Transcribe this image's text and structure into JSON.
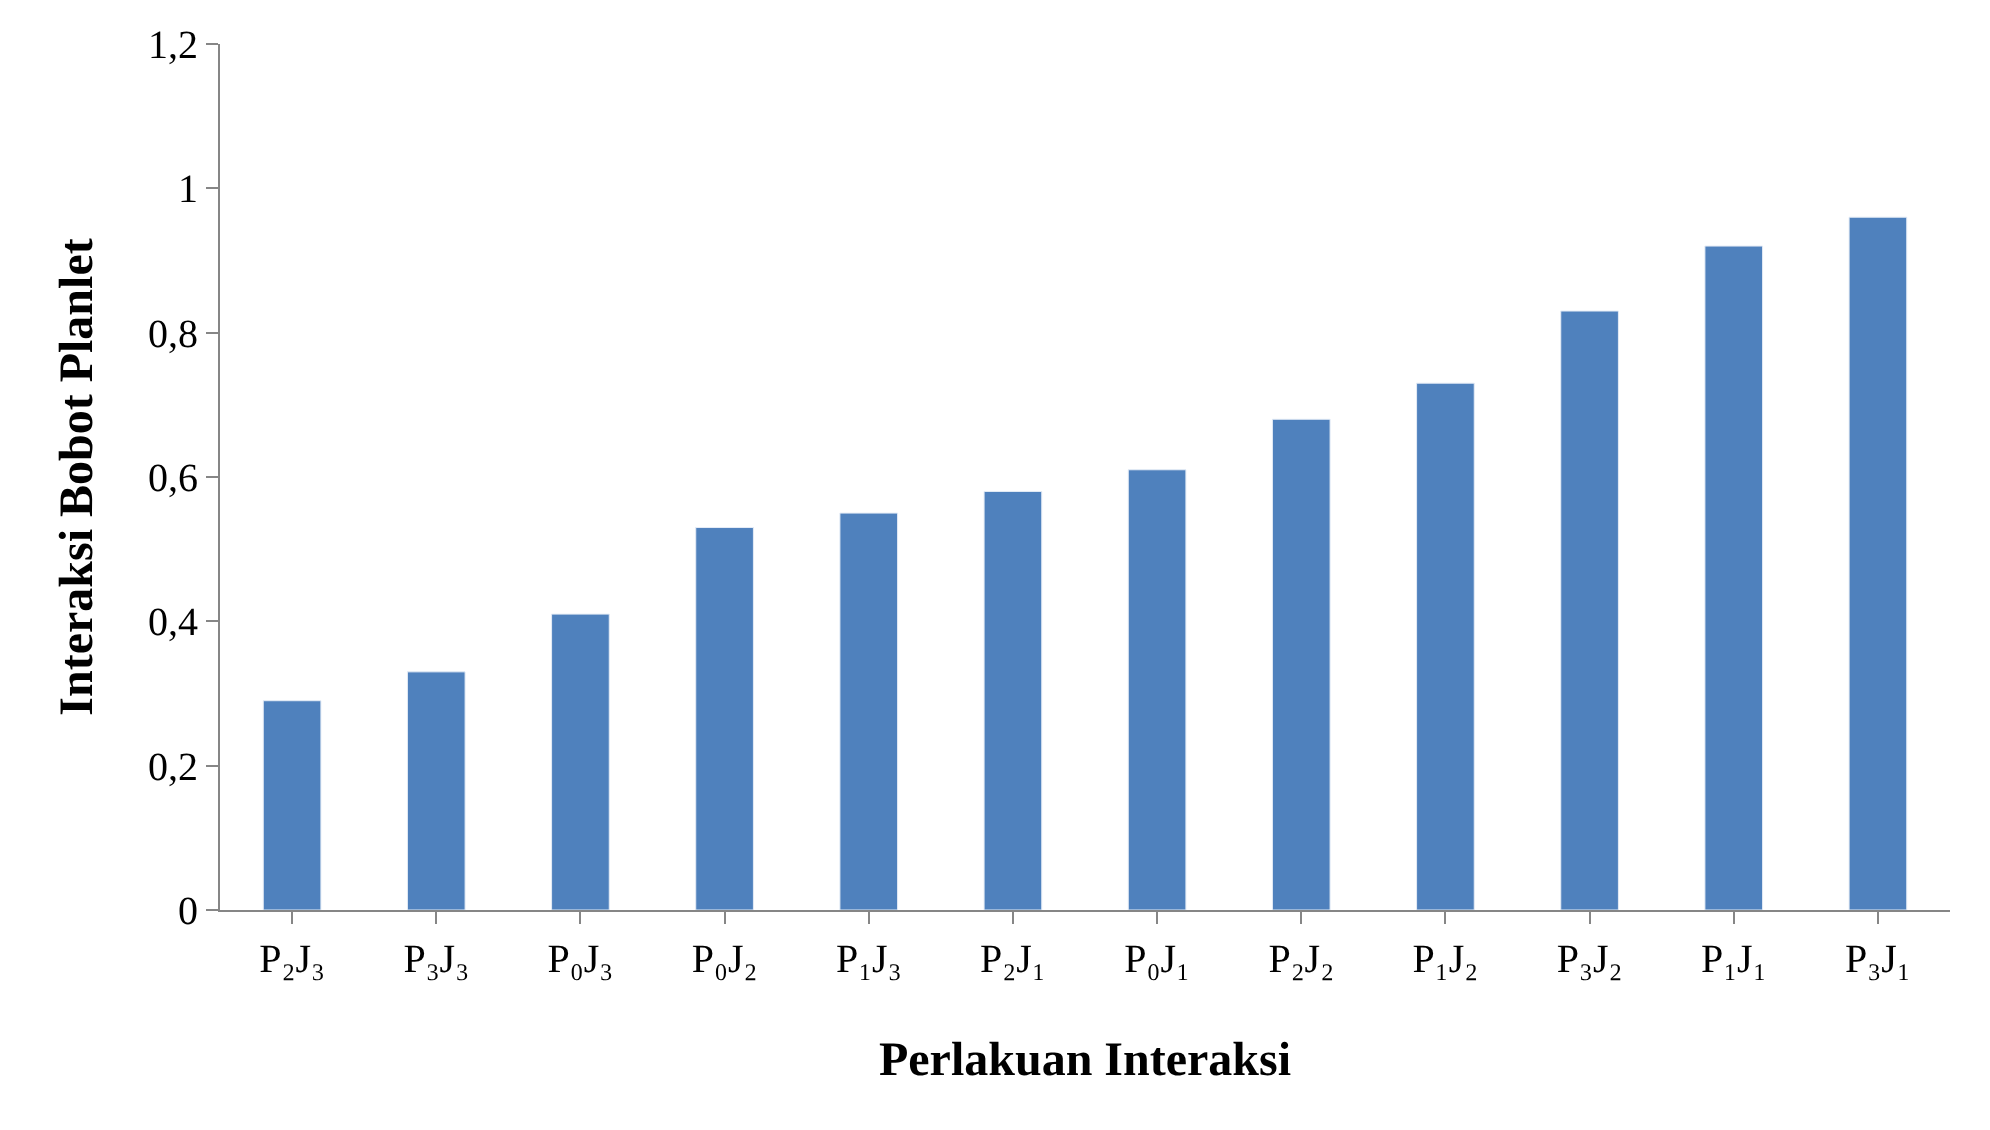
{
  "chart_data": {
    "type": "bar",
    "xlabel": "Perlakuan Interaksi",
    "ylabel": "Interaksi Bobot Planlet",
    "categories": [
      "P₂J₃",
      "P₃J₃",
      "P₀J₃",
      "P₀J₂",
      "P₁J₃",
      "P₂J₁",
      "P₀J₁",
      "P₂J₂",
      "P₁J₂",
      "P₃J₂",
      "P₁J₁",
      "P₃J₁"
    ],
    "values": [
      0.29,
      0.33,
      0.41,
      0.53,
      0.55,
      0.58,
      0.61,
      0.68,
      0.73,
      0.83,
      0.92,
      0.96
    ],
    "color": "#4f81bd",
    "ylim": [
      0,
      1.2
    ],
    "yticks": [
      0,
      {
        "value": 0.2,
        "label": "0,2"
      },
      {
        "value": 0.4,
        "label": "0,4"
      },
      {
        "value": 0.6,
        "label": "0,6"
      },
      {
        "value": 0.8,
        "label": "0,8"
      },
      1,
      {
        "value": 1.2,
        "label": "1,2"
      }
    ],
    "legend": false
  }
}
